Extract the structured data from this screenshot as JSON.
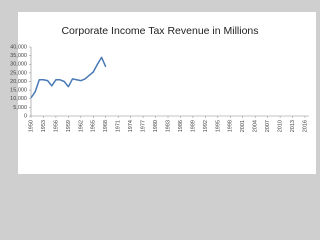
{
  "chart_data": {
    "type": "line",
    "title": "Corporate Income Tax Revenue in Millions",
    "x": [
      1950,
      1951,
      1952,
      1953,
      1954,
      1955,
      1956,
      1957,
      1958,
      1959,
      1960,
      1961,
      1962,
      1963,
      1964,
      1965,
      1966,
      1967,
      1968
    ],
    "series": [
      {
        "color": "#4a7ab5",
        "values": [
          10500,
          14000,
          21000,
          21000,
          20500,
          17500,
          21000,
          21000,
          20000,
          17000,
          21500,
          21000,
          20500,
          21500,
          23500,
          25500,
          30000,
          34000,
          28500
        ]
      }
    ],
    "xlim": [
      1950,
      2016
    ],
    "xticks": [
      1950,
      1953,
      1956,
      1959,
      1962,
      1965,
      1968,
      1971,
      1974,
      1977,
      1980,
      1983,
      1986,
      1989,
      1992,
      1995,
      1998,
      2001,
      2004,
      2007,
      2010,
      2013,
      2016
    ],
    "ylim": [
      0,
      40000
    ],
    "yticks": [
      0,
      {
        "value": 5000,
        "label": "5,000"
      },
      {
        "value": 10000,
        "label": "10,000"
      },
      {
        "value": 15000,
        "label": "15,000"
      },
      {
        "value": 20000,
        "label": "20,000"
      },
      {
        "value": 25000,
        "label": "25,000"
      },
      {
        "value": 30000,
        "label": "30,000"
      },
      {
        "value": 35000,
        "label": "35,000"
      },
      {
        "value": 40000,
        "label": "40,000"
      }
    ]
  }
}
